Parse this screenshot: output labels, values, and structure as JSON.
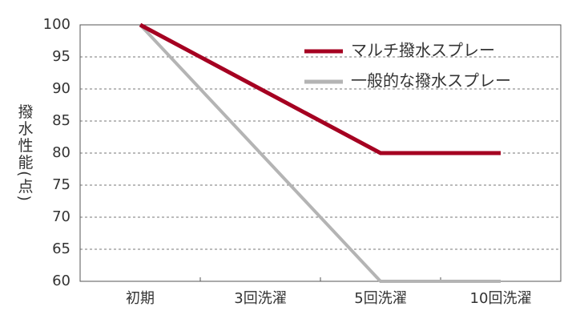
{
  "chart_data": {
    "type": "line",
    "y_label": "撥水性能(点)",
    "categories": [
      "初期",
      "3回洗濯",
      "5回洗濯",
      "10回洗濯"
    ],
    "series": [
      {
        "name": "マルチ撥水スプレー",
        "color": "#a50021",
        "values": [
          100,
          90,
          80,
          80
        ]
      },
      {
        "name": "一般的な撥水スプレー",
        "color": "#b4b4b4",
        "values": [
          100,
          80,
          60,
          60
        ]
      }
    ],
    "ylim": [
      60,
      100
    ],
    "yticks": [
      60,
      65,
      70,
      75,
      80,
      85,
      90,
      95,
      100
    ],
    "grid": true,
    "legend": "top-right"
  }
}
